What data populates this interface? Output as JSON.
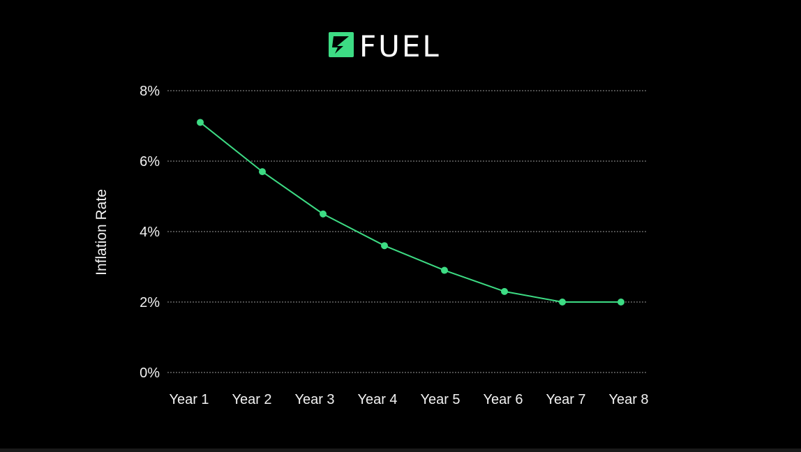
{
  "brand": {
    "name": "FUEL",
    "logo_icon": "fuel-bolt-icon",
    "accent": "#3ddc84"
  },
  "chart_data": {
    "type": "line",
    "title": "",
    "xlabel": "",
    "ylabel": "Inflation Rate",
    "categories": [
      "Year 1",
      "Year 2",
      "Year 3",
      "Year 4",
      "Year 5",
      "Year 6",
      "Year 7",
      "Year 8"
    ],
    "series": [
      {
        "values": [
          7.1,
          5.7,
          4.5,
          3.6,
          2.9,
          2.3,
          2.0,
          2.0
        ],
        "color": "#3ddc84"
      }
    ],
    "ylim": [
      0,
      8
    ],
    "yticks": [
      0,
      2,
      4,
      6,
      8
    ],
    "ytick_labels": [
      "0%",
      "2%",
      "4%",
      "6%",
      "8%"
    ],
    "grid": true,
    "grid_style": "dotted",
    "legend": "none",
    "background": "#000000",
    "text_color": "#f2f2f2",
    "grid_color": "#cfcfcf"
  }
}
